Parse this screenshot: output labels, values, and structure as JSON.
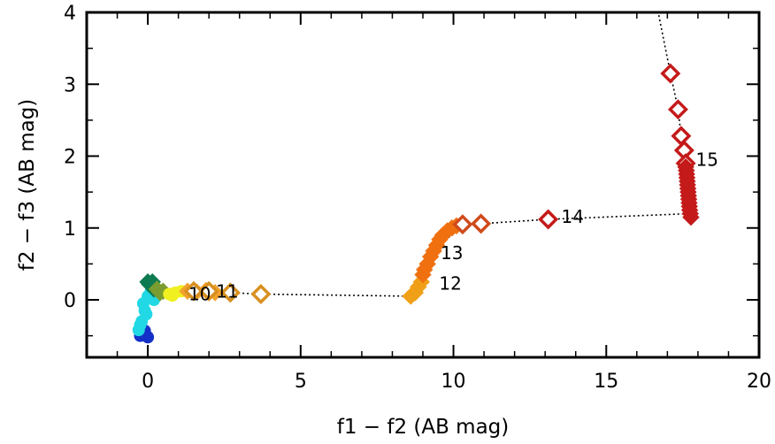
{
  "chart_data": {
    "type": "scatter",
    "xlabel": "f1 − f2 (AB mag)",
    "ylabel": "f2 − f3 (AB mag)",
    "xlim": [
      -2,
      20
    ],
    "ylim": [
      -0.8,
      4.0
    ],
    "x_ticks": [
      0,
      5,
      10,
      15,
      20
    ],
    "y_ticks": [
      0,
      1,
      2,
      3,
      4
    ],
    "x_tick_labels": [
      "0",
      "5",
      "10",
      "15",
      "20"
    ],
    "y_tick_labels": [
      "0",
      "1",
      "2",
      "3",
      "4"
    ],
    "grid": false,
    "legend": "none",
    "series": [
      {
        "color": "#1530c8",
        "marker": "blob",
        "points": [
          [
            -0.2,
            -0.48
          ],
          [
            -0.05,
            -0.5
          ],
          [
            -0.1,
            -0.43
          ],
          [
            0.0,
            -0.52
          ],
          [
            -0.25,
            -0.5
          ]
        ]
      },
      {
        "color": "#22d8e4",
        "marker": "blob",
        "points": [
          [
            -0.3,
            -0.42
          ],
          [
            -0.2,
            -0.3
          ],
          [
            -0.1,
            -0.15
          ],
          [
            -0.15,
            -0.05
          ],
          [
            0.0,
            0.05
          ],
          [
            0.1,
            0.1
          ],
          [
            -0.05,
            -0.2
          ],
          [
            0.2,
            0.0
          ],
          [
            0.1,
            0.12
          ],
          [
            -0.25,
            -0.35
          ]
        ]
      },
      {
        "color": "#0d7a50",
        "marker": "filled-diamond",
        "points": [
          [
            0.05,
            0.22
          ],
          [
            0.0,
            0.25
          ],
          [
            0.1,
            0.2
          ],
          [
            0.2,
            0.15
          ],
          [
            0.15,
            0.25
          ]
        ]
      },
      {
        "color": "#7a9c30",
        "marker": "filled-diamond",
        "points": [
          [
            0.4,
            0.1
          ],
          [
            0.5,
            0.12
          ],
          [
            0.3,
            0.15
          ]
        ]
      },
      {
        "color": "#f0f020",
        "marker": "blob",
        "points": [
          [
            0.7,
            0.08
          ],
          [
            0.9,
            0.1
          ],
          [
            1.1,
            0.12
          ],
          [
            0.8,
            0.06
          ]
        ]
      },
      {
        "color": "#f2a22c",
        "marker": "filled-diamond",
        "points": [
          [
            1.3,
            0.12
          ],
          [
            1.6,
            0.11
          ],
          [
            1.9,
            0.13
          ],
          [
            2.2,
            0.1
          ]
        ]
      },
      {
        "color": "#d89020",
        "marker": "open-diamond",
        "points": [
          [
            1.5,
            0.12
          ],
          [
            2.0,
            0.12
          ],
          [
            2.7,
            0.1
          ],
          [
            3.7,
            0.08
          ]
        ]
      },
      {
        "color": "#f0a018",
        "marker": "filled-diamond",
        "points": [
          [
            8.6,
            0.05
          ],
          [
            8.75,
            0.1
          ],
          [
            8.85,
            0.18
          ],
          [
            8.95,
            0.25
          ]
        ]
      },
      {
        "color": "#f07010",
        "marker": "filled-diamond",
        "points": [
          [
            9.0,
            0.35
          ],
          [
            9.05,
            0.42
          ],
          [
            9.15,
            0.5
          ],
          [
            9.25,
            0.6
          ],
          [
            9.35,
            0.68
          ],
          [
            9.45,
            0.76
          ],
          [
            9.55,
            0.84
          ],
          [
            9.65,
            0.9
          ],
          [
            9.8,
            0.96
          ],
          [
            9.95,
            1.0
          ],
          [
            10.1,
            1.03
          ],
          [
            10.3,
            1.05
          ]
        ]
      },
      {
        "color": "#d04a1c",
        "marker": "open-diamond",
        "points": [
          [
            10.3,
            1.05
          ],
          [
            10.9,
            1.06
          ]
        ]
      },
      {
        "color": "#c41a1a",
        "marker": "open-diamond",
        "points": [
          [
            13.1,
            1.12
          ],
          [
            17.1,
            3.15
          ],
          [
            17.35,
            2.65
          ],
          [
            17.45,
            2.28
          ],
          [
            17.55,
            2.08
          ],
          [
            17.6,
            1.9
          ]
        ]
      },
      {
        "color": "#c41a1a",
        "marker": "filled-diamond",
        "points": [
          [
            17.6,
            1.85
          ],
          [
            17.62,
            1.8
          ],
          [
            17.63,
            1.75
          ],
          [
            17.64,
            1.7
          ],
          [
            17.65,
            1.65
          ],
          [
            17.66,
            1.6
          ],
          [
            17.67,
            1.55
          ],
          [
            17.68,
            1.5
          ],
          [
            17.69,
            1.45
          ],
          [
            17.7,
            1.4
          ],
          [
            17.71,
            1.35
          ],
          [
            17.72,
            1.3
          ],
          [
            17.73,
            1.25
          ],
          [
            17.75,
            1.2
          ],
          [
            17.77,
            1.15
          ]
        ]
      }
    ],
    "connector_line": [
      [
        -0.2,
        -0.48
      ],
      [
        0.0,
        -0.2
      ],
      [
        0.05,
        0.22
      ],
      [
        0.9,
        0.1
      ],
      [
        1.9,
        0.12
      ],
      [
        2.7,
        0.1
      ],
      [
        3.7,
        0.08
      ],
      [
        8.6,
        0.05
      ],
      [
        9.3,
        0.65
      ],
      [
        10.3,
        1.05
      ],
      [
        10.9,
        1.06
      ],
      [
        13.1,
        1.12
      ],
      [
        17.75,
        1.2
      ],
      [
        17.6,
        1.9
      ],
      [
        17.45,
        2.28
      ],
      [
        17.35,
        2.65
      ],
      [
        17.1,
        3.15
      ],
      [
        16.7,
        4.0
      ]
    ],
    "annotations": [
      {
        "text": "10",
        "x": 1.7,
        "y": 0.08
      },
      {
        "text": "11",
        "x": 2.6,
        "y": 0.12
      },
      {
        "text": "12",
        "x": 9.9,
        "y": 0.23
      },
      {
        "text": "13",
        "x": 9.95,
        "y": 0.65
      },
      {
        "text": "14",
        "x": 13.9,
        "y": 1.16
      },
      {
        "text": "15",
        "x": 18.3,
        "y": 1.95
      }
    ]
  }
}
